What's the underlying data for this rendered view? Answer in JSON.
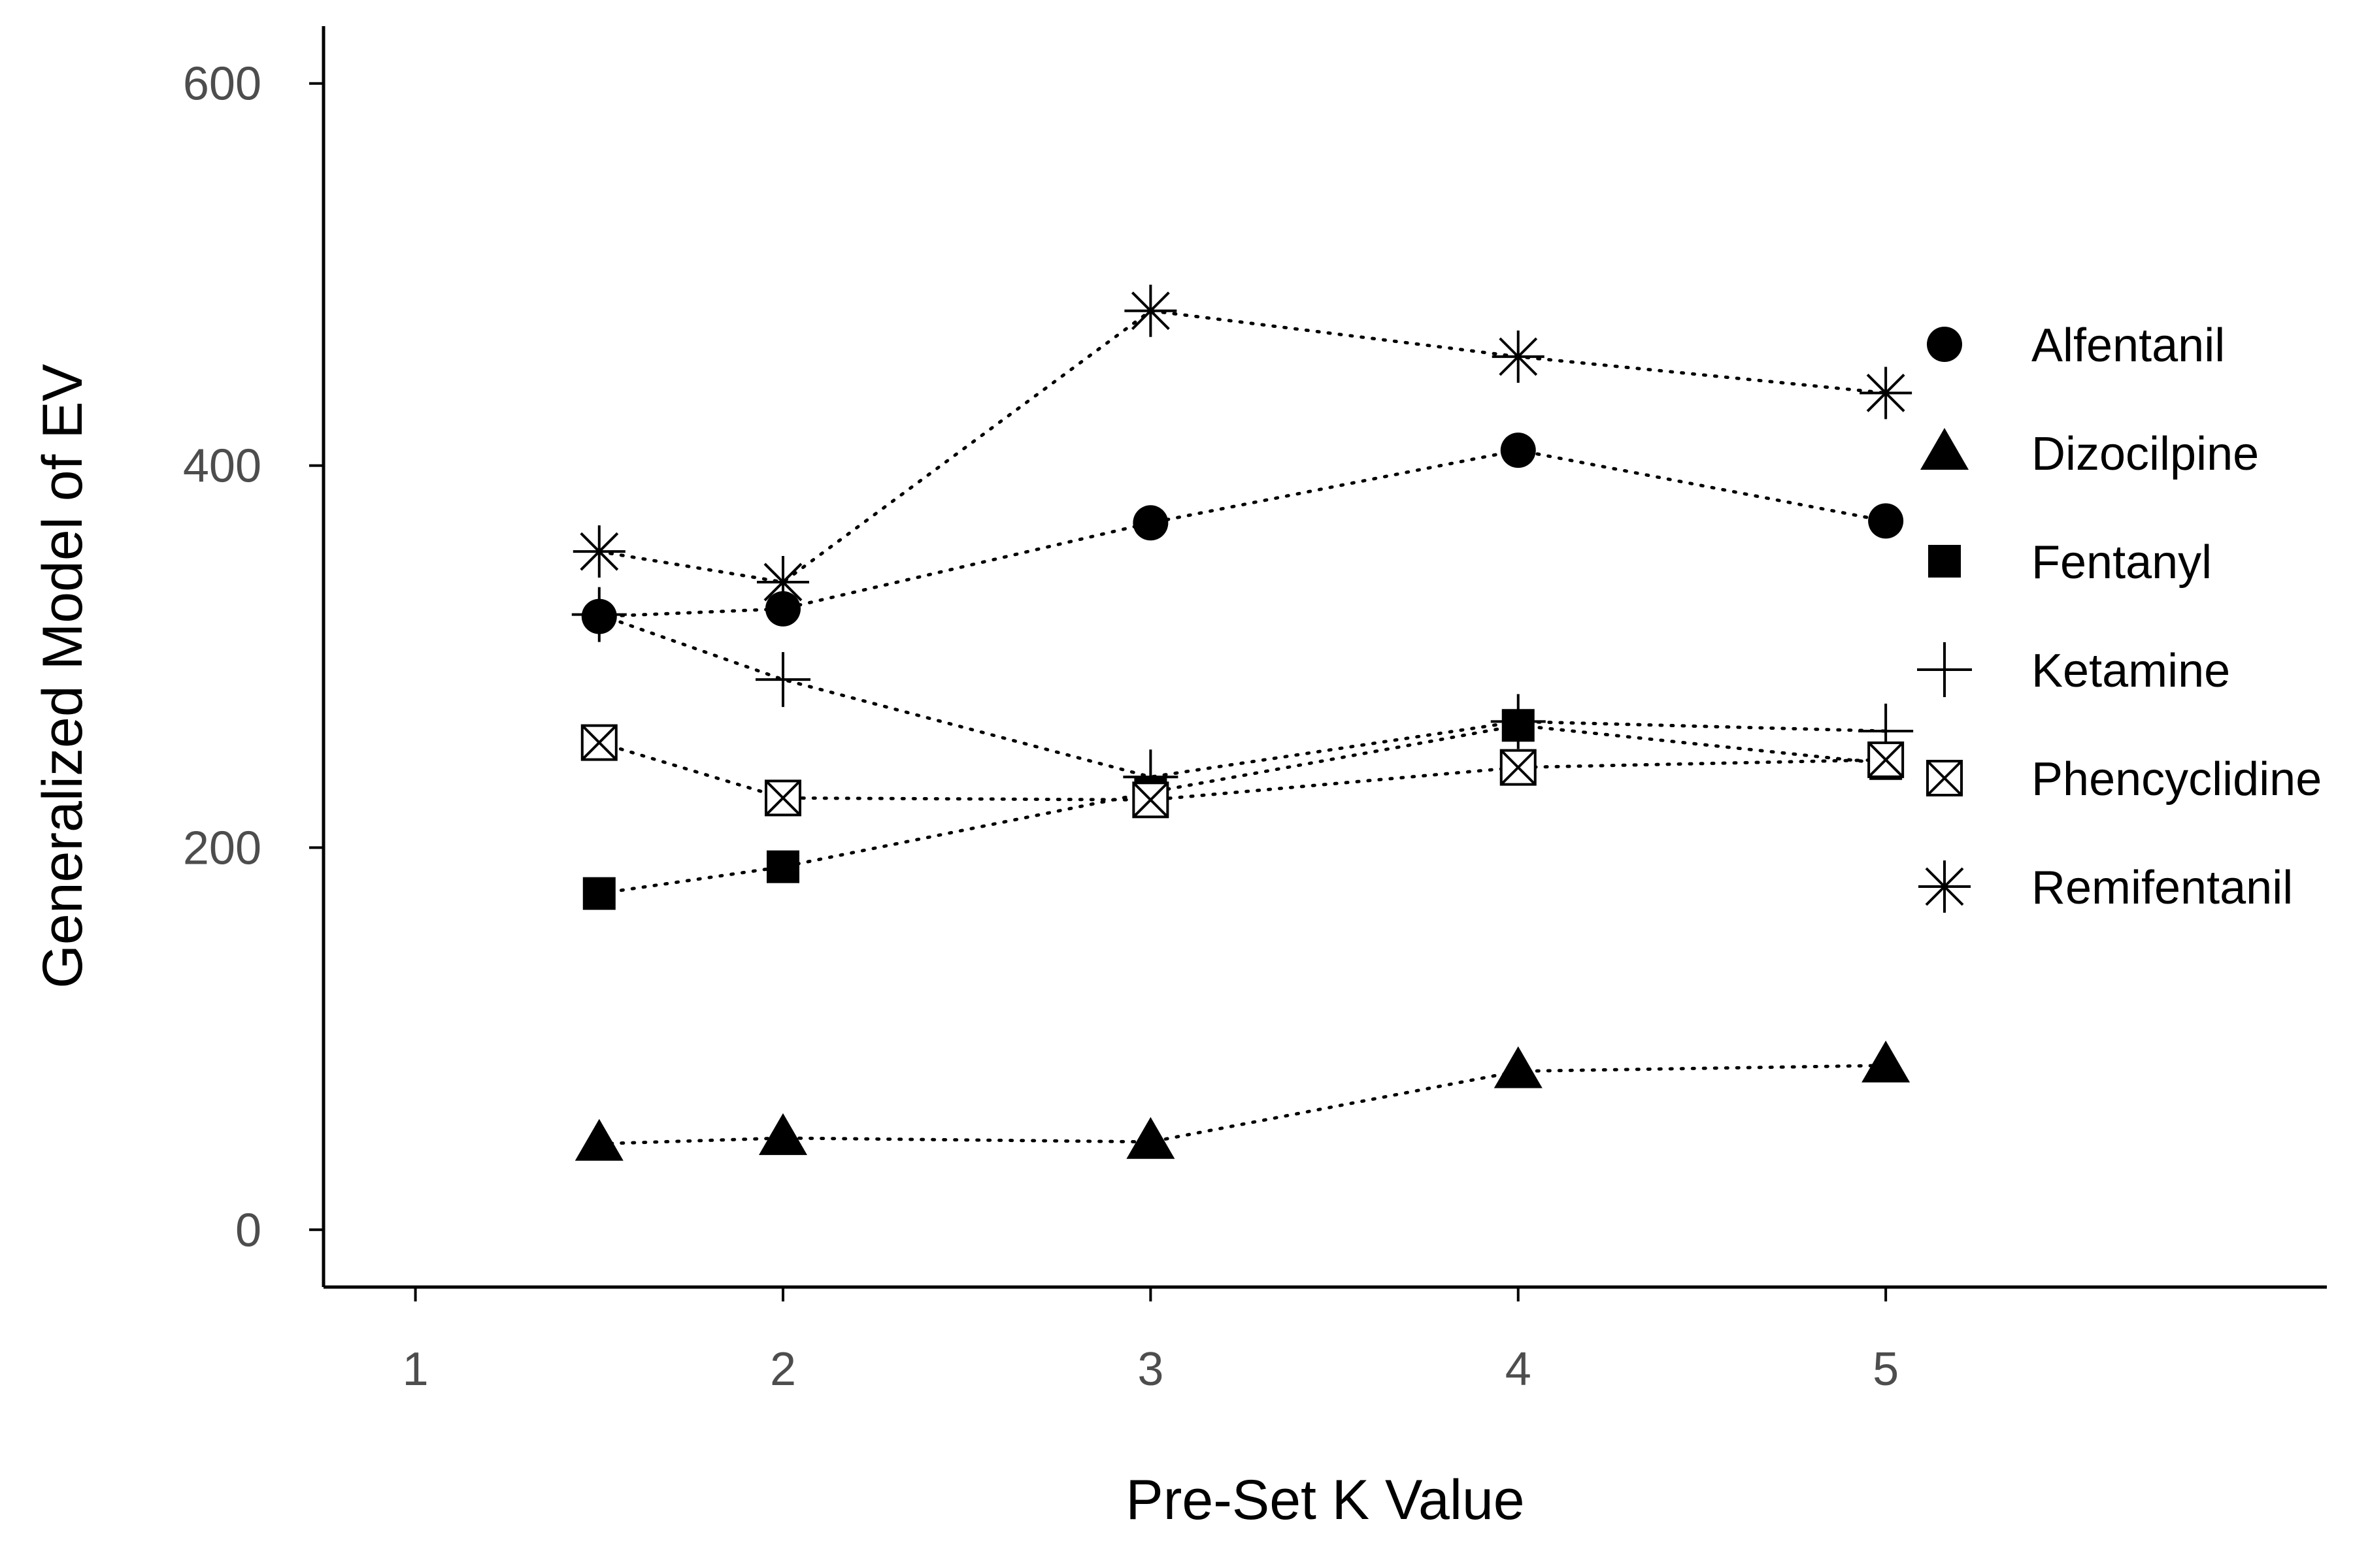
{
  "chart_data": {
    "type": "scatter",
    "xlabel": "Pre-Set K Value",
    "ylabel": "Generalized Model of EV",
    "xlim": [
      0.75,
      6.2
    ],
    "ylim": [
      -30,
      630
    ],
    "x_ticks": [
      1,
      2,
      3,
      4,
      5
    ],
    "y_ticks": [
      0,
      200,
      400,
      600
    ],
    "grid": false,
    "legend_position": "right",
    "line_style": "dotted",
    "marker_color": "#000000",
    "series": [
      {
        "name": "Alfentanil",
        "marker": "circle-filled",
        "points": [
          [
            1.5,
            321
          ],
          [
            2,
            325
          ],
          [
            3,
            370
          ],
          [
            4,
            408
          ],
          [
            5,
            371
          ]
        ]
      },
      {
        "name": "Dizocilpine",
        "marker": "triangle-filled",
        "points": [
          [
            1.5,
            45
          ],
          [
            2,
            48
          ],
          [
            3,
            46
          ],
          [
            4,
            83
          ],
          [
            5,
            86
          ]
        ]
      },
      {
        "name": "Fentanyl",
        "marker": "square-filled",
        "points": [
          [
            1.5,
            176
          ],
          [
            2,
            190
          ],
          [
            3,
            229
          ],
          [
            4,
            264
          ],
          [
            5,
            244
          ]
        ]
      },
      {
        "name": "Ketamine",
        "marker": "plus",
        "points": [
          [
            1.5,
            322
          ],
          [
            2,
            288
          ],
          [
            3,
            237
          ],
          [
            4,
            266
          ],
          [
            5,
            261
          ]
        ]
      },
      {
        "name": "Phencyclidine",
        "marker": "square-crossed",
        "points": [
          [
            1.5,
            255
          ],
          [
            2,
            226
          ],
          [
            3,
            225
          ],
          [
            4,
            242
          ],
          [
            5,
            246
          ]
        ]
      },
      {
        "name": "Remifentanil",
        "marker": "asterisk",
        "points": [
          [
            1.5,
            355
          ],
          [
            2,
            339
          ],
          [
            3,
            481
          ],
          [
            4,
            457
          ],
          [
            5,
            438
          ]
        ]
      }
    ]
  }
}
